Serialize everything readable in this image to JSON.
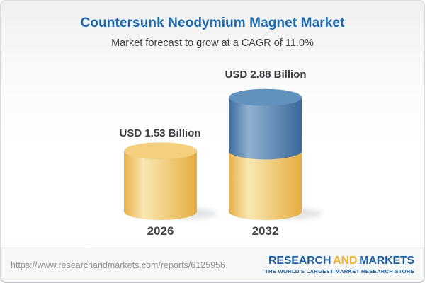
{
  "header": {
    "title": "Countersunk Neodymium Magnet Market",
    "subtitle": "Market forecast to grow at a CAGR of 11.0%"
  },
  "chart_data": {
    "type": "bar",
    "variant": "3d-cylinder",
    "title": "Countersunk Neodymium Magnet Market",
    "subtitle": "Market forecast to grow at a CAGR of 11.0%",
    "unit": "USD Billion",
    "cagr_percent": 11.0,
    "categories": [
      "2026",
      "2032"
    ],
    "values": [
      1.53,
      2.88
    ],
    "value_labels": [
      "USD 1.53 Billion",
      "USD 2.88 Billion"
    ],
    "series_note": "2032 bar is stacked: gold base segment equals 2026 value (1.53), blue top segment is growth to 2.88",
    "legend": "none",
    "axes": "none",
    "grid": false
  },
  "footer": {
    "url": "https://www.researchandmarkets.com/reports/6125956",
    "logo": {
      "part1": "RESEARCH",
      "part2": "AND",
      "part3": "MARKETS",
      "tagline": "THE WORLD'S LARGEST MARKET RESEARCH STORE"
    }
  },
  "colors": {
    "gold_edge": "#E8B149",
    "gold_highlight": "#F9E7B2",
    "gold_edge2": "#E5AC3F",
    "gold_top": "#F3CF7E",
    "blue_edge": "#3E6B9E",
    "blue_highlight": "#8FB1CF",
    "blue_edge2": "#3A689B",
    "blue_top": "#6191BD",
    "title_blue": "#1C69B0",
    "subtitle_gray": "#3E4247",
    "label_dark": "#393D42",
    "year_dark": "#43474C",
    "url_gray": "#8D9093",
    "logo_blue": "#1F5FA0",
    "logo_gold": "#EFB232",
    "shadow": "#9CA1A4"
  }
}
